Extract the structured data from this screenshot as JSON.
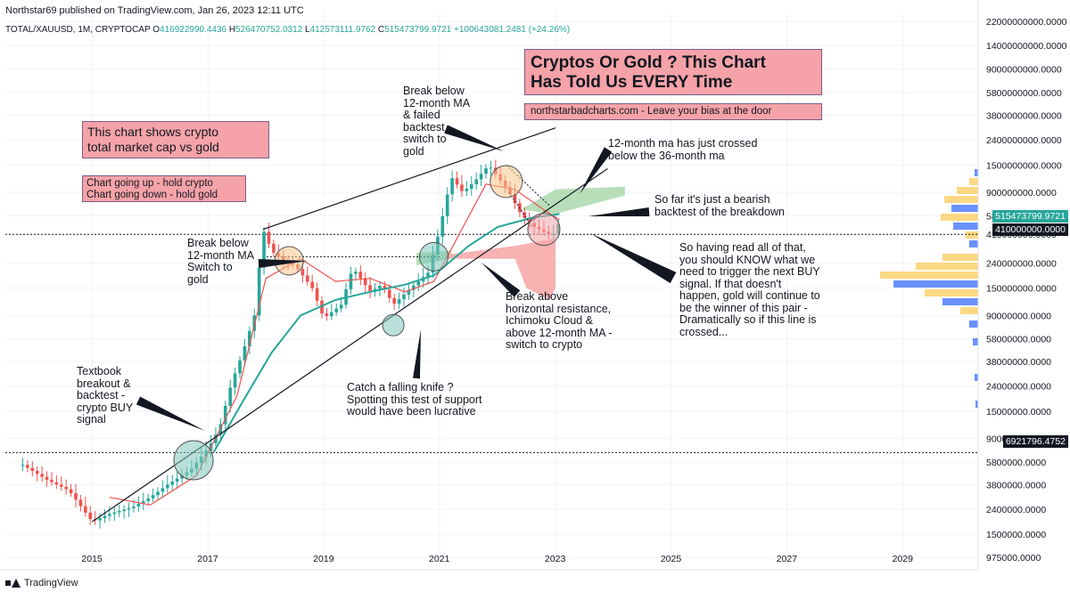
{
  "header": {
    "publisher": "Northstar69 published on TradingView.com, Jan 26, 2023 12:11 UTC",
    "symbol": "TOTAL/XAUUSD, 1M, CRYPTOCAP",
    "open_label": "O",
    "open": "416922990.4436",
    "high_label": "H",
    "high": "526470752.0312",
    "low_label": "L",
    "low": "412573111.9762",
    "close_label": "C",
    "close": "515473799.9721",
    "change": "+100643081.2481 (+24.26%)"
  },
  "footer": {
    "brand": "TradingView"
  },
  "price_tags": {
    "current": "515473799.9721",
    "line_upper": "410000000.0000",
    "line_lower": "6921796.4752"
  },
  "annotations": {
    "title_box": "Cryptos Or Gold ? This Chart\nHas Told Us EVERY Time",
    "site_box": "northstarbadcharts.com - Leave your bias at the door",
    "info_box": "This chart shows crypto\ntotal market cap vs gold",
    "rule_box": "Chart going up - hold crypto\nChart going down - hold gold",
    "break_below_top": "Break below\n12-month MA\n& failed\nbacktest -\nswitch to\ngold",
    "ma_cross": "12-month ma has just crossed\nbelow the 36-month ma",
    "bearish_backtest": "So far it's just a bearish\nbacktest of the breakdown",
    "break_below_2018": "Break below\n12-month MA\nSwitch to\ngold",
    "break_above": "Break above\nhorizontal resistance,\nIchimoku Cloud &\nabove 12-month MA -\nswitch to crypto",
    "conclusion": "So having read all of that,\nyou should KNOW what we\nneed to trigger the next BUY\nsignal. If that doesn't\nhappen, gold will continue to\nbe the winner of this pair -\nDramatically so if this line is\ncrossed...",
    "textbook": "Textbook\nbreakout &\nbacktest -\ncrypto BUY\nsignal",
    "falling_knife": "Catch a falling knife ?\nSpotting this test of support\nwould have been lucrative"
  },
  "colors": {
    "up_candle": "#26a69a",
    "down_candle": "#ef5350",
    "ma12": "#ef5350",
    "ma36": "#26a69a",
    "cloud_bull": "#a5d6a7",
    "cloud_bear": "#f8a5a5",
    "box_fill": "#f5a3a8",
    "volume_profile_up": "#2962ff",
    "volume_profile_down": "#f9c74f"
  },
  "chart_data": {
    "type": "candlestick",
    "title": "",
    "xlabel": "",
    "ylabel": "",
    "scale": "log",
    "x_ticks": [
      "2015",
      "2017",
      "2019",
      "2021",
      "2023",
      "2025",
      "2027",
      "2029"
    ],
    "y_ticks": [
      "22000000000.0000",
      "14000000000.0000",
      "9000000000.0000",
      "5800000000.0000",
      "3800000000.0000",
      "2400000000.0000",
      "1500000000.0000",
      "900000000.0000",
      "580000000.0000",
      "410000000.0000",
      "240000000.0000",
      "150000000.0000",
      "90000000.0000",
      "58000000.0000",
      "38000000.0000",
      "24000000.0000",
      "15000000.0000",
      "9000000.0000",
      "5800000.0000",
      "3800000.0000",
      "2400000.0000",
      "1500000.0000",
      "975000.0000"
    ],
    "ylim": [
      800000,
      26000000000
    ],
    "xlim": [
      2013.5,
      2030.3
    ],
    "series": [
      {
        "name": "TOTAL/XAUUSD",
        "points": [
          [
            2013.8,
            5500000
          ],
          [
            2014.2,
            4200000
          ],
          [
            2014.6,
            3400000
          ],
          [
            2015.0,
            1900000
          ],
          [
            2015.3,
            2200000
          ],
          [
            2015.7,
            2500000
          ],
          [
            2016.0,
            3000000
          ],
          [
            2016.3,
            3800000
          ],
          [
            2016.7,
            5000000
          ],
          [
            2017.0,
            7500000
          ],
          [
            2017.2,
            11000000
          ],
          [
            2017.4,
            25000000
          ],
          [
            2017.6,
            45000000
          ],
          [
            2017.8,
            90000000
          ],
          [
            2017.95,
            450000000
          ],
          [
            2018.1,
            300000000
          ],
          [
            2018.3,
            250000000
          ],
          [
            2018.5,
            230000000
          ],
          [
            2018.8,
            150000000
          ],
          [
            2019.0,
            85000000
          ],
          [
            2019.3,
            110000000
          ],
          [
            2019.5,
            220000000
          ],
          [
            2019.8,
            140000000
          ],
          [
            2020.0,
            160000000
          ],
          [
            2020.2,
            110000000
          ],
          [
            2020.5,
            150000000
          ],
          [
            2020.8,
            200000000
          ],
          [
            2021.0,
            450000000
          ],
          [
            2021.2,
            1200000000
          ],
          [
            2021.4,
            900000000
          ],
          [
            2021.6,
            1100000000
          ],
          [
            2021.85,
            1500000000
          ],
          [
            2022.0,
            1200000000
          ],
          [
            2022.2,
            900000000
          ],
          [
            2022.4,
            600000000
          ],
          [
            2022.6,
            480000000
          ],
          [
            2022.8,
            430000000
          ],
          [
            2022.95,
            400000000
          ],
          [
            2023.07,
            515473799.9721
          ]
        ]
      },
      {
        "name": "12-month MA",
        "points": [
          [
            2015.3,
            3000000
          ],
          [
            2016.0,
            2600000
          ],
          [
            2016.8,
            4500000
          ],
          [
            2017.5,
            20000000
          ],
          [
            2018.0,
            180000000
          ],
          [
            2018.6,
            260000000
          ],
          [
            2019.2,
            170000000
          ],
          [
            2019.8,
            180000000
          ],
          [
            2020.4,
            140000000
          ],
          [
            2020.9,
            170000000
          ],
          [
            2021.3,
            380000000
          ],
          [
            2021.8,
            1050000000
          ],
          [
            2022.3,
            950000000
          ],
          [
            2022.8,
            650000000
          ],
          [
            2023.07,
            540000000
          ]
        ]
      },
      {
        "name": "36-month MA",
        "points": [
          [
            2017.1,
            7000000
          ],
          [
            2017.6,
            18000000
          ],
          [
            2018.1,
            45000000
          ],
          [
            2018.6,
            90000000
          ],
          [
            2019.2,
            120000000
          ],
          [
            2019.8,
            140000000
          ],
          [
            2020.4,
            160000000
          ],
          [
            2020.9,
            190000000
          ],
          [
            2021.5,
            330000000
          ],
          [
            2022.0,
            470000000
          ],
          [
            2022.6,
            560000000
          ],
          [
            2023.07,
            600000000
          ]
        ]
      }
    ],
    "trendlines": [
      {
        "name": "upper channel",
        "from": [
          2017.95,
          450000000
        ],
        "to": [
          2023.0,
          3000000000
        ]
      },
      {
        "name": "lower support",
        "from": [
          2015.0,
          1900000
        ],
        "to": [
          2023.9,
          1400000000
        ]
      }
    ],
    "horizontal_lines": [
      410000000,
      6921796.4752,
      270000000
    ],
    "circles": [
      {
        "x": 2016.75,
        "y": 6000000
      },
      {
        "x": 2018.4,
        "y": 250000000
      },
      {
        "x": 2020.9,
        "y": 270000000
      },
      {
        "x": 2020.2,
        "y": 75000000
      },
      {
        "x": 2022.15,
        "y": 1100000000
      },
      {
        "x": 2022.8,
        "y": 450000000
      }
    ]
  }
}
